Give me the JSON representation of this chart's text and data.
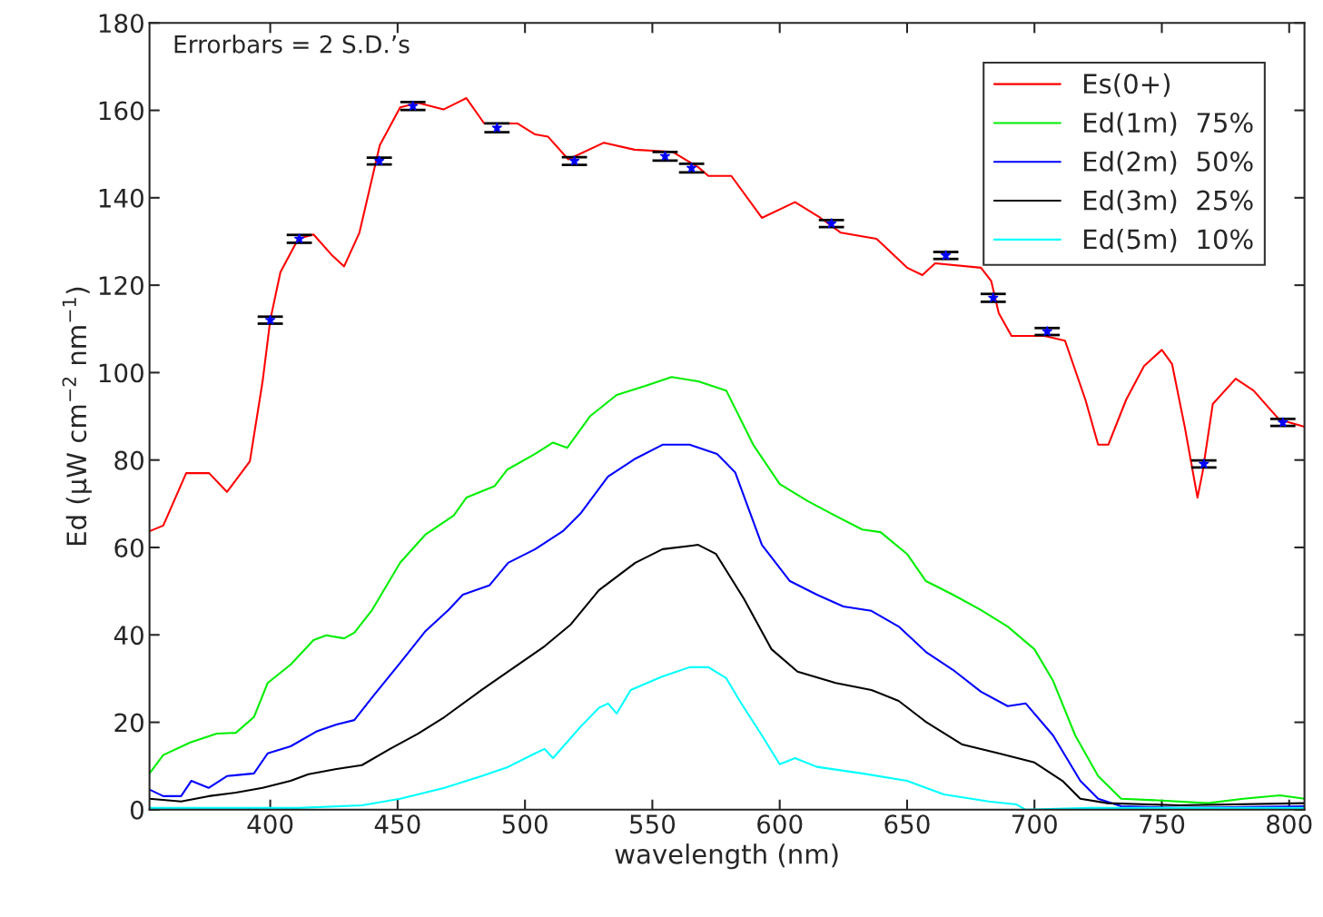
{
  "chart_data": {
    "type": "line",
    "xlabel": "wavelength (nm)",
    "ylabel": "Ed (μW cm$^{−2}$ nm$^{−1}$)",
    "annotations": [
      "Errorbars = 2 S.D.’s"
    ],
    "xlim": [
      352.6,
      806
    ],
    "ylim": [
      0,
      180
    ],
    "xticks": [
      400,
      450,
      500,
      550,
      600,
      650,
      700,
      750,
      800
    ],
    "yticks": [
      0,
      20,
      40,
      60,
      80,
      100,
      120,
      140,
      160,
      180
    ],
    "grid": false,
    "legend": "top right",
    "line_style": "solid",
    "marker": "none",
    "series": [
      {
        "name": "Es(0+)",
        "color": "#ff0000",
        "x": [
          352.6,
          358,
          367,
          376,
          383,
          392,
          397,
          400,
          404,
          411,
          417,
          424,
          429,
          435,
          443,
          451,
          458,
          468,
          477,
          484,
          497,
          504,
          509,
          517,
          531,
          543,
          558,
          568,
          572,
          581,
          593,
          606,
          616,
          624,
          638,
          650,
          656,
          661,
          679,
          683,
          686,
          691,
          704,
          712,
          720,
          725,
          729,
          736,
          743,
          750,
          754,
          759,
          764,
          766,
          770,
          779,
          786,
          796,
          806
        ],
        "values": [
          63.7,
          65,
          77,
          77,
          72.7,
          79.7,
          98,
          112,
          123,
          130.6,
          131.6,
          127,
          124.3,
          132,
          152,
          160.7,
          161.7,
          160.2,
          162.8,
          157,
          157,
          154.5,
          154,
          148.8,
          152.6,
          151,
          150.5,
          147,
          145,
          145,
          135.4,
          139,
          135.4,
          132,
          130.6,
          124,
          122.3,
          125,
          124,
          121,
          113.6,
          108.4,
          108.4,
          107.3,
          93.8,
          83.5,
          83.5,
          93.8,
          101.5,
          105.2,
          102,
          87.6,
          71.4,
          77.2,
          92.8,
          98.6,
          95.9,
          89.3,
          87.6
        ]
      },
      {
        "name": "Ed(1m)  75%",
        "color": "#00ee00",
        "x": [
          352.6,
          358,
          368.6,
          379,
          386.5,
          393.6,
          399,
          408,
          417,
          422,
          429,
          433,
          440,
          451,
          461,
          472,
          477,
          488,
          493,
          504,
          511,
          516.6,
          525.5,
          536,
          547,
          557.6,
          568,
          579,
          589.6,
          600,
          611,
          621.7,
          632.4,
          639.6,
          650,
          657.4,
          668,
          679,
          689.5,
          700,
          707.3,
          716,
          725,
          734,
          750,
          768,
          782,
          796.4,
          806
        ],
        "values": [
          8.3,
          12.5,
          15.4,
          17.4,
          17.6,
          21.2,
          29,
          33.2,
          38.8,
          39.9,
          39.2,
          40.5,
          45.7,
          56.5,
          63,
          67.3,
          71.4,
          74,
          77.8,
          81.4,
          84,
          82.8,
          90,
          94.9,
          96.9,
          99,
          98,
          95.9,
          83.5,
          74.5,
          70.6,
          67.3,
          64.1,
          63.5,
          58.5,
          52.3,
          49.2,
          45.7,
          41.9,
          36.7,
          29.5,
          17,
          7.7,
          2.5,
          2.1,
          1.5,
          2.5,
          3.3,
          2.5
        ]
      },
      {
        "name": "Ed(2m)  50%",
        "color": "#0000ff",
        "x": [
          352.6,
          358,
          365,
          369,
          375.8,
          383,
          393.6,
          399,
          408,
          418.5,
          426,
          433,
          440,
          451,
          461,
          470,
          475.6,
          486,
          493.4,
          504,
          514.8,
          522,
          532.6,
          543.3,
          554,
          564.7,
          575.4,
          582.5,
          593,
          604,
          614.6,
          625,
          636,
          646.7,
          657.4,
          668,
          679,
          689.5,
          696.6,
          707.3,
          718,
          725,
          734,
          757,
          806
        ],
        "values": [
          4.6,
          3.1,
          3.1,
          6.6,
          5,
          7.7,
          8.3,
          12.9,
          14.5,
          18,
          19.5,
          20.5,
          25.7,
          33.6,
          40.9,
          45.7,
          49.2,
          51.3,
          56.5,
          59.6,
          63.7,
          67.9,
          76.2,
          80.3,
          83.5,
          83.5,
          81.4,
          77.2,
          60.6,
          52.3,
          49.2,
          46.5,
          45.5,
          41.9,
          36.1,
          32,
          27,
          23.7,
          24.3,
          17,
          6.6,
          2.5,
          0.8,
          0.4,
          0.8
        ]
      },
      {
        "name": "Ed(3m)  25%",
        "color": "#000000",
        "x": [
          352.6,
          365,
          375.8,
          386.5,
          397,
          408,
          415,
          426,
          436,
          447,
          458,
          468.4,
          483,
          493.4,
          507.7,
          518,
          529,
          543.3,
          554,
          568,
          575,
          586,
          596.8,
          607,
          622,
          636,
          646.7,
          657.4,
          671.7,
          686,
          700,
          711,
          718,
          728.7,
          757,
          806
        ],
        "values": [
          2.5,
          1.9,
          3.1,
          3.9,
          5,
          6.6,
          8.1,
          9.3,
          10.2,
          13.9,
          17.4,
          21.2,
          27.4,
          31.6,
          37.4,
          42.4,
          50.2,
          56.5,
          59.6,
          60.6,
          58.5,
          48.2,
          36.7,
          31.6,
          29,
          27.4,
          24.9,
          20.1,
          14.9,
          12.9,
          10.8,
          6.6,
          2.5,
          1.5,
          1,
          1.5
        ]
      },
      {
        "name": "Ed(5m)  10%",
        "color": "#00ffff",
        "x": [
          352.6,
          386.5,
          411,
          436,
          451,
          468.4,
          483,
          493.4,
          504,
          507.7,
          511,
          522,
          529,
          532.6,
          536,
          541.5,
          554,
          564.7,
          572,
          579,
          584.3,
          593,
          600,
          606,
          614.6,
          632.4,
          650,
          664.5,
          682,
          693,
          696.6,
          721.6,
          806
        ],
        "values": [
          0.4,
          0.4,
          0.4,
          1,
          2.5,
          5,
          7.7,
          9.8,
          12.9,
          13.9,
          11.8,
          19.1,
          23.3,
          24.3,
          22,
          27.4,
          30.5,
          32.6,
          32.6,
          30.1,
          24.9,
          17,
          10.4,
          11.8,
          9.8,
          8.3,
          6.6,
          3.5,
          1.9,
          1.2,
          0,
          0.4,
          0.4
        ]
      },
      {
        "type": "scatter",
        "color": "#0000ff",
        "marker": "star",
        "x": [
          400,
          411.4,
          442.8,
          456,
          489,
          519.4,
          555,
          565.4,
          620.3,
          665.2,
          683.8,
          705,
          766.5,
          797.5
        ],
        "values": [
          112,
          130.6,
          148.4,
          161,
          156,
          148.4,
          149.5,
          146.8,
          134.1,
          126.8,
          117.1,
          109.4,
          79.1,
          88.6
        ],
        "errors": [
          0.8,
          0.9,
          0.8,
          0.9,
          1,
          0.9,
          1,
          1,
          0.8,
          0.8,
          0.9,
          0.8,
          0.8,
          0.8
        ]
      }
    ]
  }
}
